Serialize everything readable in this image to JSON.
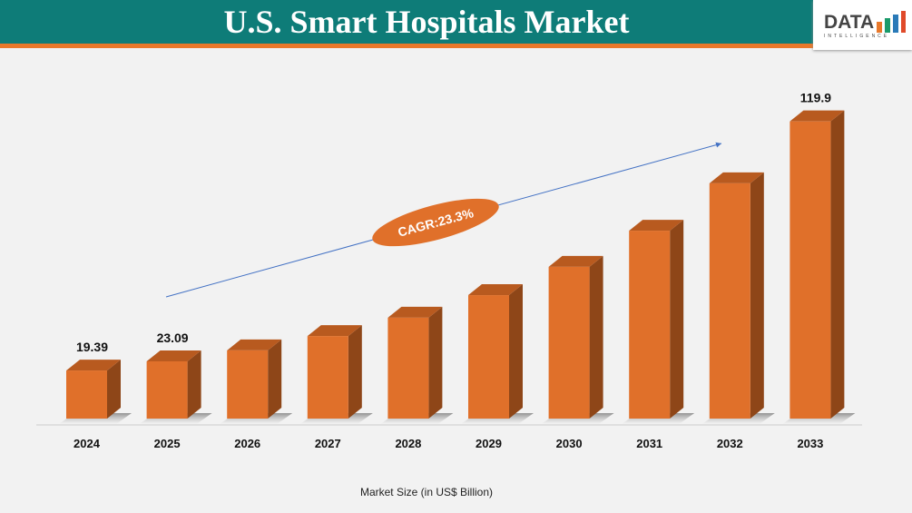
{
  "header": {
    "title": "U.S. Smart Hospitals Market",
    "logo_text": "DATA",
    "logo_sub": "INTELLIGENCE"
  },
  "colors": {
    "header": "#0e7c78",
    "accent": "#e8782a",
    "bar_front": "#e0702a",
    "bar_side": "#8e4618",
    "bar_top": "#b85a1f"
  },
  "chart_data": {
    "type": "bar",
    "categories": [
      "2024",
      "2025",
      "2026",
      "2027",
      "2028",
      "2029",
      "2030",
      "2031",
      "2032",
      "2033"
    ],
    "values": [
      19.39,
      23.09,
      27.5,
      33.3,
      40.7,
      49.8,
      61.2,
      75.8,
      94.9,
      119.9
    ],
    "data_labels": {
      "2024": "19.39",
      "2025": "23.09",
      "2033": "119.9"
    },
    "xlabel": "Market Size (in US$ Billion)",
    "annotation": "CAGR:23.3%",
    "grid": false,
    "style": "3d"
  }
}
